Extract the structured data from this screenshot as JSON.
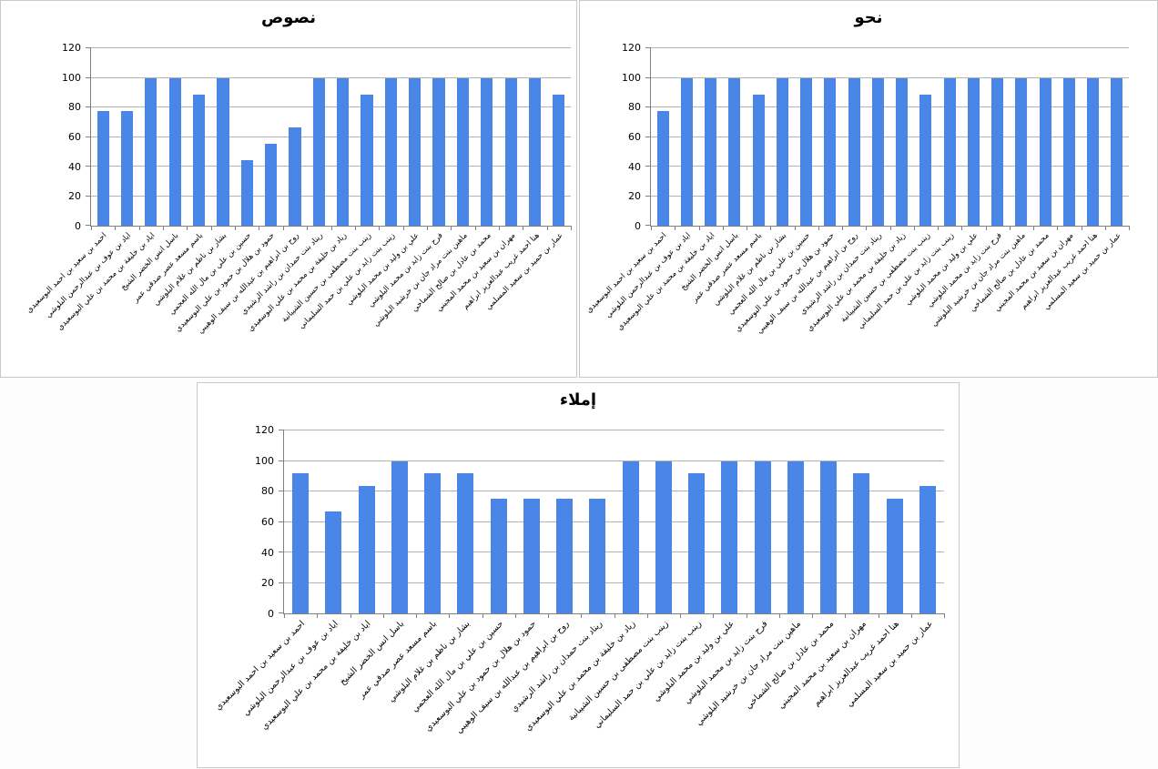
{
  "colors": {
    "bar": "#4a86e8",
    "gridline": "#b2b2b2",
    "axis": "#808080",
    "panel_border": "#c8c8c8",
    "background": "#ffffff"
  },
  "students": [
    "احمد بن سعيد بن احمد البوسعيدي",
    "اياد بن عوف بن عبدالرحمن البلوشي",
    "اياد بن خليفة بن محمد بن علي البوسعيدي",
    "باسل انس الخضر الشيخ",
    "باسم مسعد عصر صدقي عمر",
    "بشار بن ناظم بن غلام البلوشي",
    "حسين بن علي بن مال الله العجمي",
    "حمود بن هلال بن حمود بن علي البوسعيدي",
    "روح بن ابراهيم بن عبدالله بن سيف الوهيبي",
    "ريناد بنت حمدان بن راشد الرشيدي",
    "زياد بن خليفة بن محمد بن علي البوسعيدي",
    "زينب بنت مصطفى بن حسين الشيبانية",
    "زينب بنت زايد بن علي بن حمد السليماني",
    "علي بن وليد بن محمد البلوشي",
    "فرح بنت زايد بن محمد البلوشي",
    "ماهين بنت مراد جان بن خرشيد البلوشي",
    "محمد بن عادل بن صالح الشماخي",
    "مهران بن سعيد بن محمد المجيني",
    "هنا احمد غريب عبدالعزيز ابراهيم",
    "عمار بن حميد بن سعيد المسلمي"
  ],
  "chart_data": [
    {
      "type": "bar",
      "title": "نصوص",
      "xlabel": "",
      "ylabel": "",
      "ylim": [
        0,
        120
      ],
      "yticks": [
        0,
        20,
        40,
        60,
        80,
        100,
        120
      ],
      "grid": true,
      "legend": false,
      "categories": [
        "احمد بن سعيد بن احمد البوسعيدي",
        "اياد بن عوف بن عبدالرحمن البلوشي",
        "اياد بن خليفة بن محمد بن علي البوسعيدي",
        "باسل انس الخضر الشيخ",
        "باسم مسعد عصر صدقي عمر",
        "بشار بن ناظم بن غلام البلوشي",
        "حسين بن علي بن مال الله العجمي",
        "حمود بن هلال بن حمود بن علي البوسعيدي",
        "روح بن ابراهيم بن عبدالله بن سيف الوهيبي",
        "ريناد بنت حمدان بن راشد الرشيدي",
        "زياد بن خليفة بن محمد بن علي البوسعيدي",
        "زينب بنت مصطفى بن حسين الشيبانية",
        "زينب بنت زايد بن علي بن حمد السليماني",
        "علي بن وليد بن محمد البلوشي",
        "فرح بنت زايد بن محمد البلوشي",
        "ماهين بنت مراد جان بن خرشيد البلوشي",
        "محمد بن عادل بن صالح الشماخي",
        "مهران بن سعيد بن محمد المجيني",
        "هنا احمد غريب عبدالعزيز ابراهيم",
        "عمار بن حميد بن سعيد المسلمي"
      ],
      "values": [
        77.8,
        77.8,
        100,
        100,
        88.9,
        100,
        44.4,
        55.6,
        66.7,
        100,
        100,
        88.9,
        100,
        100,
        100,
        100,
        100,
        100,
        100,
        88.9
      ]
    },
    {
      "type": "bar",
      "title": "نحو",
      "xlabel": "",
      "ylabel": "",
      "ylim": [
        0,
        120
      ],
      "yticks": [
        0,
        20,
        40,
        60,
        80,
        100,
        120
      ],
      "grid": true,
      "legend": false,
      "categories": [
        "احمد بن سعيد بن احمد البوسعيدي",
        "اياد بن عوف بن عبدالرحمن البلوشي",
        "اياد بن خليفة بن محمد بن علي البوسعيدي",
        "باسل انس الخضر الشيخ",
        "باسم مسعد عصر صدقي عمر",
        "بشار بن ناظم بن غلام البلوشي",
        "حسين بن علي بن مال الله العجمي",
        "حمود بن هلال بن حمود بن علي البوسعيدي",
        "روح بن ابراهيم بن عبدالله بن سيف الوهيبي",
        "ريناد بنت حمدان بن راشد الرشيدي",
        "زياد بن خليفة بن محمد بن علي البوسعيدي",
        "زينب بنت مصطفى بن حسين الشيبانية",
        "زينب بنت زايد بن علي بن حمد السليماني",
        "علي بن وليد بن محمد البلوشي",
        "فرح بنت زايد بن محمد البلوشي",
        "ماهين بنت مراد جان بن خرشيد البلوشي",
        "محمد بن عادل بن صالح الشماخي",
        "مهران بن سعيد بن محمد المجيني",
        "هنا احمد غريب عبدالعزيز ابراهيم",
        "عمار بن حميد بن سعيد المسلمي"
      ],
      "values": [
        77.8,
        100,
        100,
        100,
        88.9,
        100,
        100,
        100,
        100,
        100,
        100,
        88.9,
        100,
        100,
        100,
        100,
        100,
        100,
        100,
        100
      ]
    },
    {
      "type": "bar",
      "title": "إملاء",
      "xlabel": "",
      "ylabel": "",
      "ylim": [
        0,
        120
      ],
      "yticks": [
        0,
        20,
        40,
        60,
        80,
        100,
        120
      ],
      "grid": true,
      "legend": false,
      "categories": [
        "احمد بن سعيد بن احمد البوسعيدي",
        "اياد بن عوف بن عبدالرحمن البلوشي",
        "اياد بن خليفة بن محمد بن علي البوسعيدي",
        "باسل انس الخضر الشيخ",
        "باسم مسعد عصر صدقي عمر",
        "بشار بن ناظم بن غلام البلوشي",
        "حسين بن علي بن مال الله العجمي",
        "حمود بن هلال بن حمود بن علي البوسعيدي",
        "روح بن ابراهيم بن عبدالله بن سيف الوهيبي",
        "ريناد بنت حمدان بن راشد الرشيدي",
        "زياد بن خليفة بن محمد بن علي البوسعيدي",
        "زينب بنت مصطفى بن حسين الشيبانية",
        "زينب بنت زايد بن علي بن حمد السليماني",
        "علي بن وليد بن محمد البلوشي",
        "فرح بنت زايد بن محمد البلوشي",
        "ماهين بنت مراد جان بن خرشيد البلوشي",
        "محمد بن عادل بن صالح الشماخي",
        "مهران بن سعيد بن محمد المجيني",
        "هنا احمد غريب عبدالعزيز ابراهيم",
        "عمار بن حميد بن سعيد المسلمي"
      ],
      "values": [
        91.7,
        66.7,
        83.3,
        100,
        91.7,
        91.7,
        75,
        75,
        75,
        75,
        100,
        100,
        91.7,
        100,
        100,
        100,
        100,
        91.7,
        75,
        83.3
      ]
    }
  ]
}
